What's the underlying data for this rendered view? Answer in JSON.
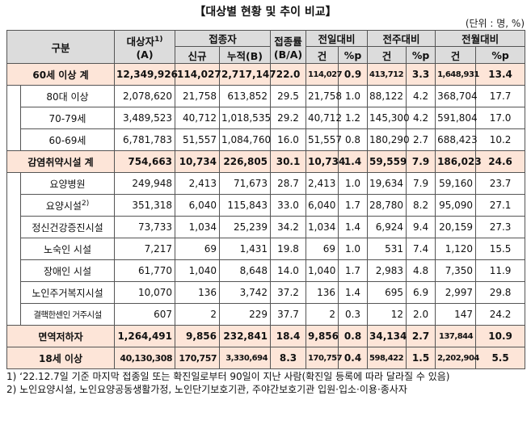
{
  "title": "【대상별 현황 및 추이 비교】",
  "unit": "(단위 : 명, %)",
  "headers": {
    "group": "구분",
    "target": "대상자",
    "target_sup": "1)",
    "target_sub": "(A)",
    "vaccinated": "접종자",
    "new": "신규",
    "cumulative": "누적(B)",
    "rate": "접종률",
    "rate_sub": "(B/A)",
    "prev_day": "전일대비",
    "prev_week": "전주대비",
    "prev_month": "전월대비",
    "cnt": "건",
    "pct": "%p"
  },
  "rows": [
    {
      "label": "60세 이상 계",
      "target": "12,349,926",
      "new": "114,027",
      "cum": "2,717,147",
      "rate": "22.0",
      "d_cnt": "114,027",
      "d_pct": "0.9",
      "w_cnt": "413,712",
      "w_pct": "3.3",
      "m_cnt": "1,648,931",
      "m_pct": "13.4"
    },
    {
      "label": "80대 이상",
      "target": "2,078,620",
      "new": "21,758",
      "cum": "613,852",
      "rate": "29.5",
      "d_cnt": "21,758",
      "d_pct": "1.0",
      "w_cnt": "88,122",
      "w_pct": "4.2",
      "m_cnt": "368,704",
      "m_pct": "17.7"
    },
    {
      "label": "70-79세",
      "target": "3,489,523",
      "new": "40,712",
      "cum": "1,018,535",
      "rate": "29.2",
      "d_cnt": "40,712",
      "d_pct": "1.2",
      "w_cnt": "145,300",
      "w_pct": "4.2",
      "m_cnt": "591,804",
      "m_pct": "17.0"
    },
    {
      "label": "60-69세",
      "target": "6,781,783",
      "new": "51,557",
      "cum": "1,084,760",
      "rate": "16.0",
      "d_cnt": "51,557",
      "d_pct": "0.8",
      "w_cnt": "180,290",
      "w_pct": "2.7",
      "m_cnt": "688,423",
      "m_pct": "10.2"
    },
    {
      "label": "감염취약시설 계",
      "target": "754,663",
      "new": "10,734",
      "cum": "226,805",
      "rate": "30.1",
      "d_cnt": "10,734",
      "d_pct": "1.4",
      "w_cnt": "59,559",
      "w_pct": "7.9",
      "m_cnt": "186,023",
      "m_pct": "24.6"
    },
    {
      "label": "요양병원",
      "target": "249,948",
      "new": "2,413",
      "cum": "71,673",
      "rate": "28.7",
      "d_cnt": "2,413",
      "d_pct": "1.0",
      "w_cnt": "19,634",
      "w_pct": "7.9",
      "m_cnt": "59,160",
      "m_pct": "23.7"
    },
    {
      "label": "요양시설",
      "label_sup": "2)",
      "target": "351,318",
      "new": "6,040",
      "cum": "115,843",
      "rate": "33.0",
      "d_cnt": "6,040",
      "d_pct": "1.7",
      "w_cnt": "28,780",
      "w_pct": "8.2",
      "m_cnt": "95,090",
      "m_pct": "27.1"
    },
    {
      "label": "정신건강증진시설",
      "target": "73,733",
      "new": "1,034",
      "cum": "25,239",
      "rate": "34.2",
      "d_cnt": "1,034",
      "d_pct": "1.4",
      "w_cnt": "6,924",
      "w_pct": "9.4",
      "m_cnt": "20,159",
      "m_pct": "27.3"
    },
    {
      "label": "노숙인 시설",
      "target": "7,217",
      "new": "69",
      "cum": "1,431",
      "rate": "19.8",
      "d_cnt": "69",
      "d_pct": "1.0",
      "w_cnt": "531",
      "w_pct": "7.4",
      "m_cnt": "1,120",
      "m_pct": "15.5"
    },
    {
      "label": "장애인 시설",
      "target": "61,770",
      "new": "1,040",
      "cum": "8,648",
      "rate": "14.0",
      "d_cnt": "1,040",
      "d_pct": "1.7",
      "w_cnt": "2,983",
      "w_pct": "4.8",
      "m_cnt": "7,350",
      "m_pct": "11.9"
    },
    {
      "label": "노인주거복지시설",
      "target": "10,070",
      "new": "136",
      "cum": "3,742",
      "rate": "37.2",
      "d_cnt": "136",
      "d_pct": "1.4",
      "w_cnt": "695",
      "w_pct": "6.9",
      "m_cnt": "2,997",
      "m_pct": "29.8"
    },
    {
      "label": "결핵한센인 거주시설",
      "target": "607",
      "new": "2",
      "cum": "229",
      "rate": "37.7",
      "d_cnt": "2",
      "d_pct": "0.3",
      "w_cnt": "12",
      "w_pct": "2.0",
      "m_cnt": "147",
      "m_pct": "24.2"
    },
    {
      "label": "면역저하자",
      "target": "1,264,491",
      "new": "9,856",
      "cum": "232,841",
      "rate": "18.4",
      "d_cnt": "9,856",
      "d_pct": "0.8",
      "w_cnt": "34,134",
      "w_pct": "2.7",
      "m_cnt": "137,844",
      "m_pct": "10.9"
    },
    {
      "label": "18세 이상",
      "target": "40,130,308",
      "new": "170,757",
      "cum": "3,330,694",
      "rate": "8.3",
      "d_cnt": "170,757",
      "d_pct": "0.4",
      "w_cnt": "598,422",
      "w_pct": "1.5",
      "m_cnt": "2,202,904",
      "m_pct": "5.5"
    }
  ],
  "notes": [
    "1) ‘22.12.7일 기준 마지막 접종일 또는 확진일로부터 90일이 지난 사람(확진일 등록에 따라 달라질 수 있음)",
    "2) 노인요양시설, 노인요양공동생활가정, 노인단기보호기관, 주야간보호기관 입원·입소·이용·종사자"
  ]
}
